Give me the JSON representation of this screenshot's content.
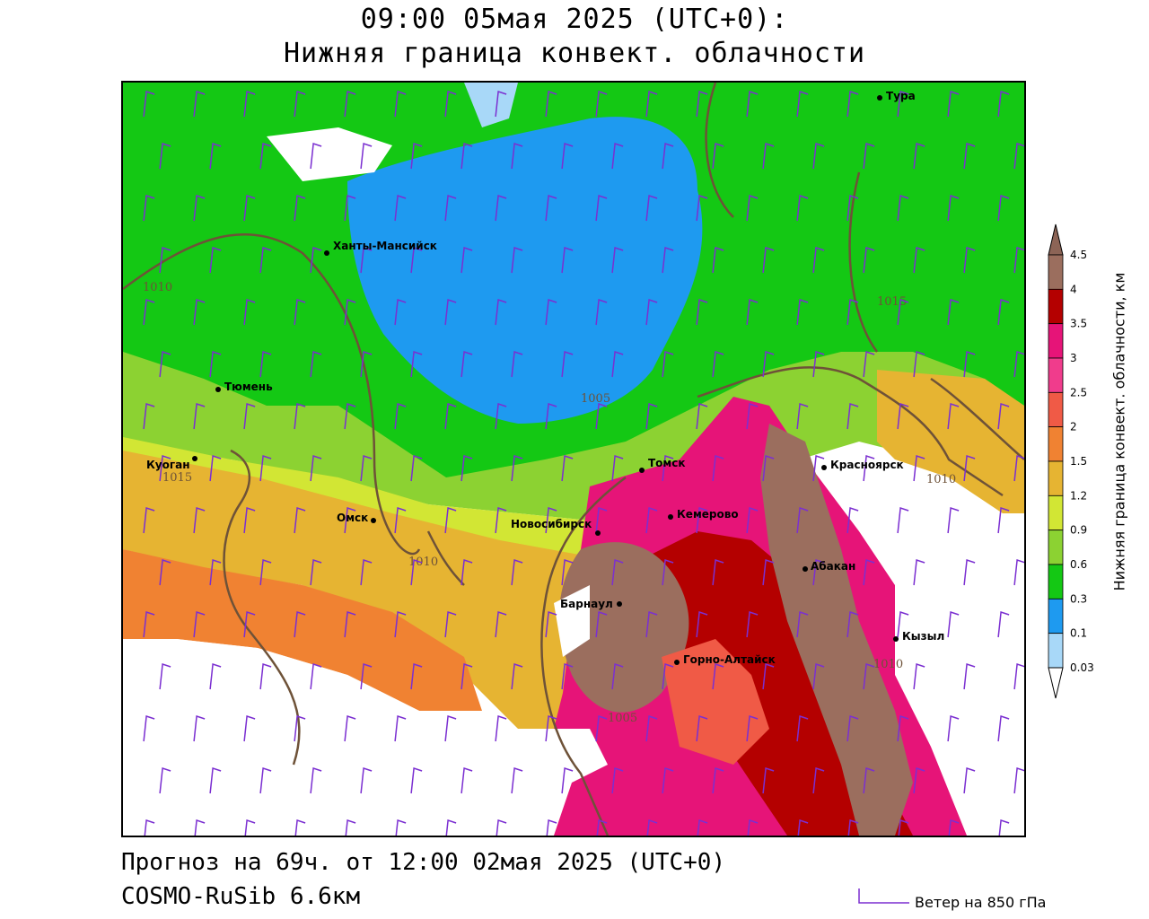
{
  "header": {
    "line1": "09:00 05мая 2025 (UTC+0):",
    "line2": "Нижняя граница конвект. облачности"
  },
  "footer": {
    "forecast": "Прогноз на 69ч. от 12:00 02мая 2025 (UTC+0)",
    "model": "COSMO-RuSib 6.6км",
    "wind_legend": "Ветер на 850 гПа"
  },
  "colorbar": {
    "title": "Нижняя граница конвект. облачности, км",
    "ticks": [
      "0.03",
      "0.1",
      "0.3",
      "0.6",
      "0.9",
      "1.2",
      "1.5",
      "2",
      "2.5",
      "3",
      "3.5",
      "4",
      "4.5"
    ],
    "colors": [
      "#e4e4ff",
      "#a8d8f8",
      "#1e9af0",
      "#14c814",
      "#8cd232",
      "#d2e634",
      "#e6b432",
      "#f08232",
      "#f05a46",
      "#f03c8c",
      "#e61478",
      "#b40000",
      "#9b6e5e",
      "#8c6456"
    ]
  },
  "cities": [
    {
      "name": "Тура"
    },
    {
      "name": "Ханты-Мансийск"
    },
    {
      "name": "Тюмень"
    },
    {
      "name": "Куоган"
    },
    {
      "name": "Томск"
    },
    {
      "name": "Красноярск"
    },
    {
      "name": "Омск"
    },
    {
      "name": "Новосибирск"
    },
    {
      "name": "Кемерово"
    },
    {
      "name": "Абакан"
    },
    {
      "name": "Барнаул"
    },
    {
      "name": "Кызыл"
    },
    {
      "name": "Горно-Алтайск"
    }
  ],
  "isobars": [
    "1010",
    "1015",
    "1005",
    "1015",
    "1010",
    "1010",
    "1005",
    "1010"
  ]
}
